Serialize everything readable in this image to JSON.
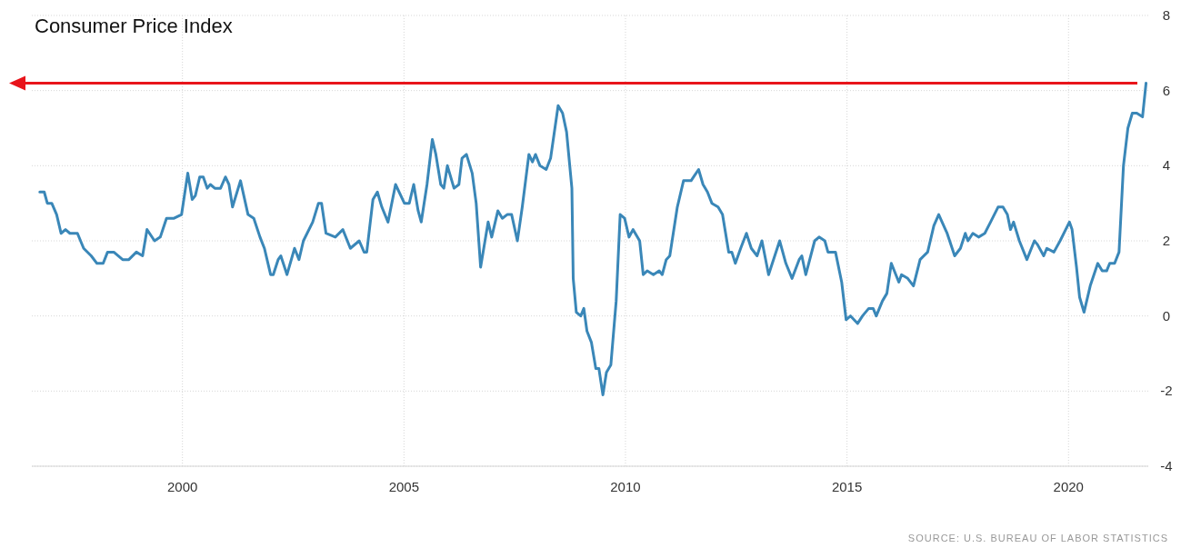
{
  "chart_data": {
    "type": "line",
    "title": "Consumer Price Index",
    "annotations": [
      "SOURCE: U.S. BUREAU OF LABOR STATISTICS"
    ],
    "xlim": [
      1996.6,
      2021.8
    ],
    "xticks": [
      2000,
      2005,
      2010,
      2015,
      2020
    ],
    "ylim": [
      -4,
      8
    ],
    "yticks": [
      -4,
      -2,
      0,
      2,
      4,
      6,
      8
    ],
    "grid": true,
    "ref_lines": [
      {
        "axis": "y",
        "value": 6.2,
        "color": "#e8141b"
      }
    ],
    "series": [
      {
        "color": "#3a87b8",
        "x": [
          1996.78,
          1996.88,
          1996.95,
          1997.05,
          1997.16,
          1997.26,
          1997.36,
          1997.46,
          1997.63,
          1997.77,
          1997.94,
          1998.07,
          1998.21,
          1998.31,
          1998.45,
          1998.65,
          1998.79,
          1998.96,
          1999.1,
          1999.2,
          1999.37,
          1999.5,
          1999.64,
          1999.81,
          1999.98,
          2000.12,
          2000.22,
          2000.29,
          2000.39,
          2000.47,
          2000.56,
          2000.63,
          2000.73,
          2000.86,
          2000.97,
          2001.05,
          2001.13,
          2001.31,
          2001.48,
          2001.61,
          2001.75,
          2001.85,
          2001.99,
          2002.05,
          2002.16,
          2002.22,
          2002.36,
          2002.53,
          2002.63,
          2002.73,
          2002.94,
          2003.07,
          2003.14,
          2003.24,
          2003.45,
          2003.62,
          2003.79,
          2003.99,
          2004.1,
          2004.16,
          2004.3,
          2004.4,
          2004.5,
          2004.64,
          2004.81,
          2005.01,
          2005.12,
          2005.22,
          2005.32,
          2005.39,
          2005.52,
          2005.64,
          2005.72,
          2005.83,
          2005.9,
          2005.98,
          2006.13,
          2006.24,
          2006.31,
          2006.41,
          2006.54,
          2006.63,
          2006.73,
          2006.9,
          2006.98,
          2007.12,
          2007.22,
          2007.33,
          2007.43,
          2007.56,
          2007.67,
          2007.82,
          2007.9,
          2007.97,
          2008.07,
          2008.21,
          2008.31,
          2008.48,
          2008.58,
          2008.67,
          2008.79,
          2008.82,
          2008.89,
          2008.99,
          2009.06,
          2009.13,
          2009.23,
          2009.33,
          2009.4,
          2009.49,
          2009.57,
          2009.67,
          2009.79,
          2009.88,
          2009.98,
          2010.08,
          2010.17,
          2010.32,
          2010.4,
          2010.49,
          2010.63,
          2010.76,
          2010.83,
          2010.92,
          2011.0,
          2011.17,
          2011.31,
          2011.48,
          2011.65,
          2011.75,
          2011.85,
          2011.95,
          2012.09,
          2012.19,
          2012.33,
          2012.4,
          2012.48,
          2012.6,
          2012.73,
          2012.84,
          2012.97,
          2013.08,
          2013.23,
          2013.48,
          2013.62,
          2013.76,
          2013.92,
          2013.98,
          2014.07,
          2014.27,
          2014.37,
          2014.5,
          2014.57,
          2014.74,
          2014.88,
          2014.98,
          2015.08,
          2015.24,
          2015.35,
          2015.49,
          2015.59,
          2015.66,
          2015.8,
          2015.9,
          2016.0,
          2016.17,
          2016.23,
          2016.37,
          2016.5,
          2016.65,
          2016.82,
          2016.96,
          2017.07,
          2017.26,
          2017.43,
          2017.56,
          2017.67,
          2017.73,
          2017.84,
          2017.97,
          2018.11,
          2018.24,
          2018.41,
          2018.52,
          2018.62,
          2018.69,
          2018.76,
          2018.89,
          2019.06,
          2019.23,
          2019.3,
          2019.44,
          2019.51,
          2019.67,
          2019.81,
          2020.02,
          2020.08,
          2020.18,
          2020.25,
          2020.35,
          2020.49,
          2020.66,
          2020.76,
          2020.86,
          2020.93,
          2021.04,
          2021.14,
          2021.24,
          2021.34,
          2021.44,
          2021.54,
          2021.67,
          2021.75
        ],
        "values": [
          3.3,
          3.3,
          3.0,
          3.0,
          2.7,
          2.2,
          2.3,
          2.2,
          2.2,
          1.8,
          1.6,
          1.4,
          1.4,
          1.7,
          1.7,
          1.5,
          1.5,
          1.7,
          1.6,
          2.3,
          2.0,
          2.1,
          2.6,
          2.6,
          2.7,
          3.8,
          3.1,
          3.2,
          3.7,
          3.7,
          3.4,
          3.5,
          3.4,
          3.4,
          3.7,
          3.5,
          2.9,
          3.6,
          2.7,
          2.6,
          2.1,
          1.8,
          1.1,
          1.1,
          1.5,
          1.6,
          1.1,
          1.8,
          1.5,
          2.0,
          2.5,
          3.0,
          3.0,
          2.2,
          2.1,
          2.3,
          1.8,
          2.0,
          1.7,
          1.7,
          3.1,
          3.3,
          2.9,
          2.5,
          3.5,
          3.0,
          3.0,
          3.5,
          2.8,
          2.5,
          3.5,
          4.7,
          4.3,
          3.5,
          3.4,
          4.0,
          3.4,
          3.5,
          4.2,
          4.3,
          3.8,
          3.0,
          1.3,
          2.5,
          2.1,
          2.8,
          2.6,
          2.7,
          2.7,
          2.0,
          2.9,
          4.3,
          4.1,
          4.3,
          4.0,
          3.9,
          4.2,
          5.6,
          5.4,
          4.9,
          3.4,
          1.0,
          0.1,
          0.0,
          0.2,
          -0.4,
          -0.7,
          -1.4,
          -1.4,
          -2.1,
          -1.5,
          -1.3,
          0.4,
          2.7,
          2.6,
          2.1,
          2.3,
          2.0,
          1.1,
          1.2,
          1.1,
          1.2,
          1.1,
          1.5,
          1.6,
          2.9,
          3.6,
          3.6,
          3.9,
          3.5,
          3.3,
          3.0,
          2.9,
          2.7,
          1.7,
          1.7,
          1.4,
          1.8,
          2.2,
          1.8,
          1.6,
          2.0,
          1.1,
          2.0,
          1.4,
          1.0,
          1.5,
          1.6,
          1.1,
          2.0,
          2.1,
          2.0,
          1.7,
          1.7,
          0.9,
          -0.1,
          0.0,
          -0.2,
          0.0,
          0.2,
          0.2,
          0.0,
          0.4,
          0.6,
          1.4,
          0.9,
          1.1,
          1.0,
          0.8,
          1.5,
          1.7,
          2.4,
          2.7,
          2.2,
          1.6,
          1.8,
          2.2,
          2.0,
          2.2,
          2.1,
          2.2,
          2.5,
          2.9,
          2.9,
          2.7,
          2.3,
          2.5,
          2.0,
          1.5,
          2.0,
          1.9,
          1.6,
          1.8,
          1.7,
          2.0,
          2.5,
          2.3,
          1.3,
          0.5,
          0.1,
          0.8,
          1.4,
          1.2,
          1.2,
          1.4,
          1.4,
          1.7,
          4.0,
          5.0,
          5.4,
          5.4,
          5.3,
          6.2
        ]
      }
    ]
  }
}
